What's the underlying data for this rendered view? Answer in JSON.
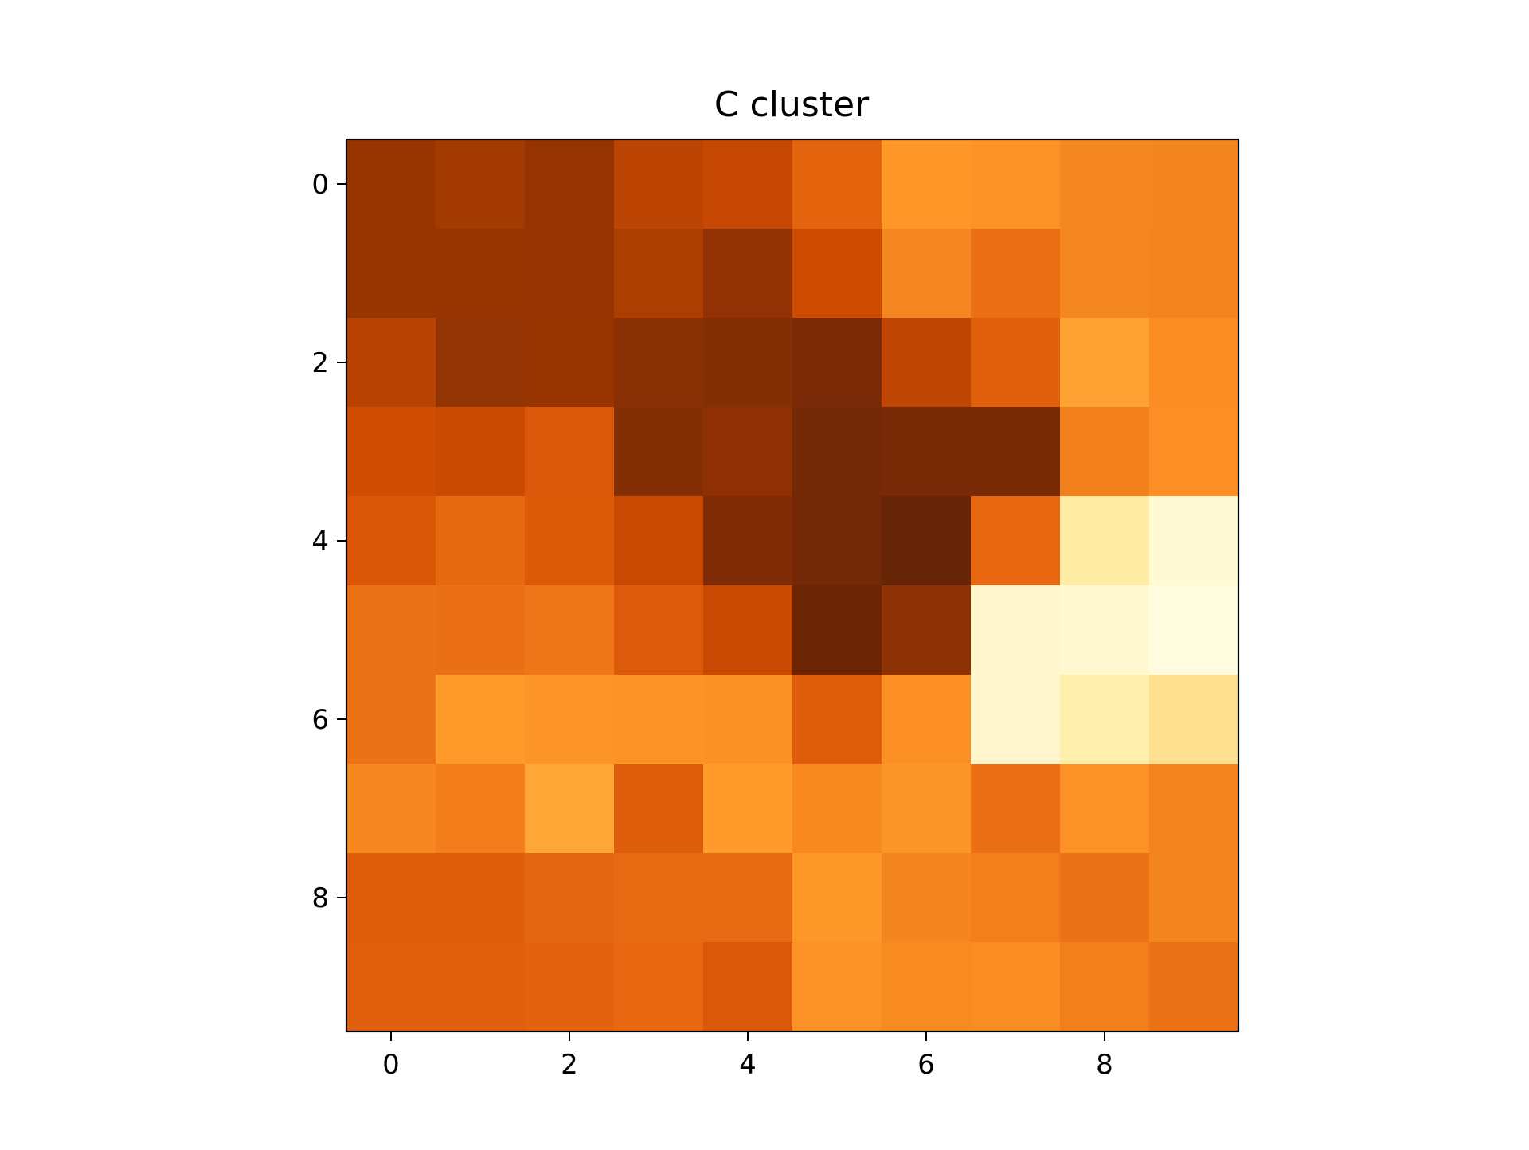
{
  "chart_data": {
    "type": "heatmap",
    "title": "C cluster",
    "xlabel": "",
    "ylabel": "",
    "x_ticks": [
      "0",
      "2",
      "4",
      "6",
      "8"
    ],
    "y_ticks": [
      "0",
      "2",
      "4",
      "6",
      "8"
    ],
    "x_tick_values": [
      0,
      2,
      4,
      6,
      8
    ],
    "y_tick_values": [
      0,
      2,
      4,
      6,
      8
    ],
    "xlim": [
      -0.5,
      9.5
    ],
    "ylim": [
      9.5,
      -0.5
    ],
    "colormap": "YlOrBr (reversed intensity: dark = low, light = high)",
    "grid": false,
    "colors": {
      "frame": "#000000",
      "background": "#ffffff"
    },
    "cell_colors": [
      [
        "#983400",
        "#A23A01",
        "#963401",
        "#BC4503",
        "#C64803",
        "#E4640E",
        "#FE9628",
        "#FD9327",
        "#F58720",
        "#F4861F"
      ],
      [
        "#983400",
        "#983400",
        "#963401",
        "#AD3E02",
        "#923204",
        "#CE4C01",
        "#F58720",
        "#EA6E13",
        "#F58720",
        "#F4851E"
      ],
      [
        "#B84303",
        "#933404",
        "#983400",
        "#8A3005",
        "#842E05",
        "#7A2A06",
        "#BE4503",
        "#E05F0D",
        "#FEA333",
        "#FB8D25"
      ],
      [
        "#D04E03",
        "#CA4903",
        "#DB5709",
        "#842E05",
        "#902F04",
        "#732806",
        "#782906",
        "#782906",
        "#F1801C",
        "#FB8E25"
      ],
      [
        "#DA5708",
        "#E7690F",
        "#DC5908",
        "#C94903",
        "#7F2C06",
        "#732806",
        "#662506",
        "#E76810",
        "#FEEBA4",
        "#FFF9D4"
      ],
      [
        "#EC7217",
        "#EA6F15",
        "#EE7618",
        "#DE5A0B",
        "#CA4A03",
        "#6B2505",
        "#8E3104",
        "#FFF6CD",
        "#FFF8D1",
        "#FFFCE0"
      ],
      [
        "#EC7217",
        "#FE9A29",
        "#FC9427",
        "#FD9326",
        "#FB9027",
        "#DF5C0B",
        "#FB8F24",
        "#FFF6CD",
        "#FEEFAC",
        "#FEE190"
      ],
      [
        "#F58820",
        "#F27D1A",
        "#FEA636",
        "#DE5E0C",
        "#FE9B2B",
        "#F7891F",
        "#FD9628",
        "#EA6F15",
        "#FC9126",
        "#F4851E"
      ],
      [
        "#DE5E0B",
        "#DE5E0B",
        "#E56610",
        "#E86A13",
        "#E86A13",
        "#FD9727",
        "#F4861F",
        "#F27F1B",
        "#EC7217",
        "#F4861F"
      ],
      [
        "#E0600D",
        "#E0600D",
        "#E2620D",
        "#E76810",
        "#DB5809",
        "#FC9227",
        "#F78A21",
        "#F98D22",
        "#F1801C",
        "#EC7217"
      ]
    ]
  }
}
